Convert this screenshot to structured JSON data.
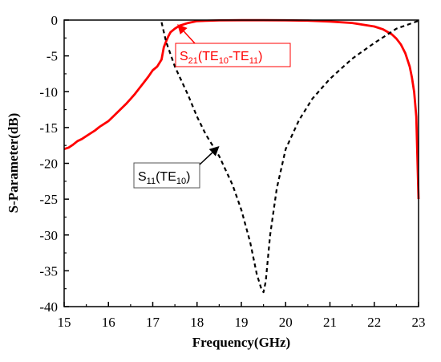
{
  "chart_data": {
    "type": "line",
    "xlabel": "Frequency(GHz)",
    "ylabel": "S-Parameter(dB)",
    "xlim": [
      15,
      23
    ],
    "ylim": [
      -40,
      0
    ],
    "xticks": [
      "15",
      "16",
      "17",
      "18",
      "19",
      "20",
      "21",
      "22",
      "23"
    ],
    "yticks": [
      "0",
      "-5",
      "-10",
      "-15",
      "-20",
      "-25",
      "-30",
      "-35",
      "-40"
    ],
    "grid": false,
    "legend": "none",
    "series": [
      {
        "color": "#ff0000",
        "style": "solid",
        "x": [
          15.0,
          15.1,
          15.2,
          15.3,
          15.4,
          15.5,
          15.6,
          15.7,
          15.8,
          15.9,
          16.0,
          16.1,
          16.2,
          16.3,
          16.4,
          16.5,
          16.6,
          16.7,
          16.8,
          16.9,
          17.0,
          17.1,
          17.15,
          17.2,
          17.25,
          17.3,
          17.35,
          17.4,
          17.5,
          17.6,
          17.8,
          18.0,
          18.5,
          19.0,
          19.5,
          20.0,
          20.5,
          21.0,
          21.5,
          22.0,
          22.2,
          22.4,
          22.5,
          22.6,
          22.7,
          22.8,
          22.85,
          22.9,
          22.95,
          23.0
        ],
        "y": [
          -18.0,
          -17.8,
          -17.4,
          -16.9,
          -16.6,
          -16.2,
          -15.8,
          -15.4,
          -14.9,
          -14.5,
          -14.1,
          -13.5,
          -12.9,
          -12.3,
          -11.7,
          -11.0,
          -10.3,
          -9.5,
          -8.7,
          -7.9,
          -7.0,
          -6.5,
          -6.0,
          -5.5,
          -3.8,
          -3.0,
          -2.3,
          -1.7,
          -1.2,
          -0.8,
          -0.4,
          -0.15,
          -0.05,
          -0.02,
          -0.02,
          -0.03,
          -0.08,
          -0.2,
          -0.4,
          -0.9,
          -1.3,
          -2.0,
          -2.6,
          -3.4,
          -4.6,
          -6.5,
          -8.0,
          -10.0,
          -13.5,
          -25.0
        ]
      },
      {
        "color": "#000000",
        "style": "dashed",
        "x": [
          17.2,
          17.3,
          17.5,
          17.8,
          18.0,
          18.2,
          18.5,
          18.8,
          19.0,
          19.2,
          19.35,
          19.45,
          19.5,
          19.55,
          19.65,
          19.8,
          20.0,
          20.3,
          20.6,
          21.0,
          21.5,
          22.0,
          22.5,
          23.0
        ],
        "y": [
          -0.3,
          -3.0,
          -6.5,
          -10.5,
          -13.5,
          -16.0,
          -19.0,
          -23.0,
          -26.5,
          -31.0,
          -35.5,
          -37.5,
          -38.0,
          -36.5,
          -30.0,
          -23.5,
          -18.0,
          -14.0,
          -11.0,
          -8.2,
          -5.4,
          -3.2,
          -1.2,
          -0.1
        ]
      }
    ],
    "annotations": [
      {
        "label": "S",
        "sub1": "21",
        "mid": "(TE",
        "sub2": "10",
        "mid2": "-TE",
        "sub3": "11",
        "end": ")",
        "color": "#ff0000",
        "box_color": "#ff0000",
        "points_to": [
          17.7,
          -0.6
        ]
      },
      {
        "label": "S",
        "sub1": "11",
        "mid": "(TE",
        "sub2": "10",
        "end": ")",
        "color": "#000000",
        "box_color": "#555555",
        "points_to": [
          18.5,
          -17.6
        ]
      }
    ]
  }
}
